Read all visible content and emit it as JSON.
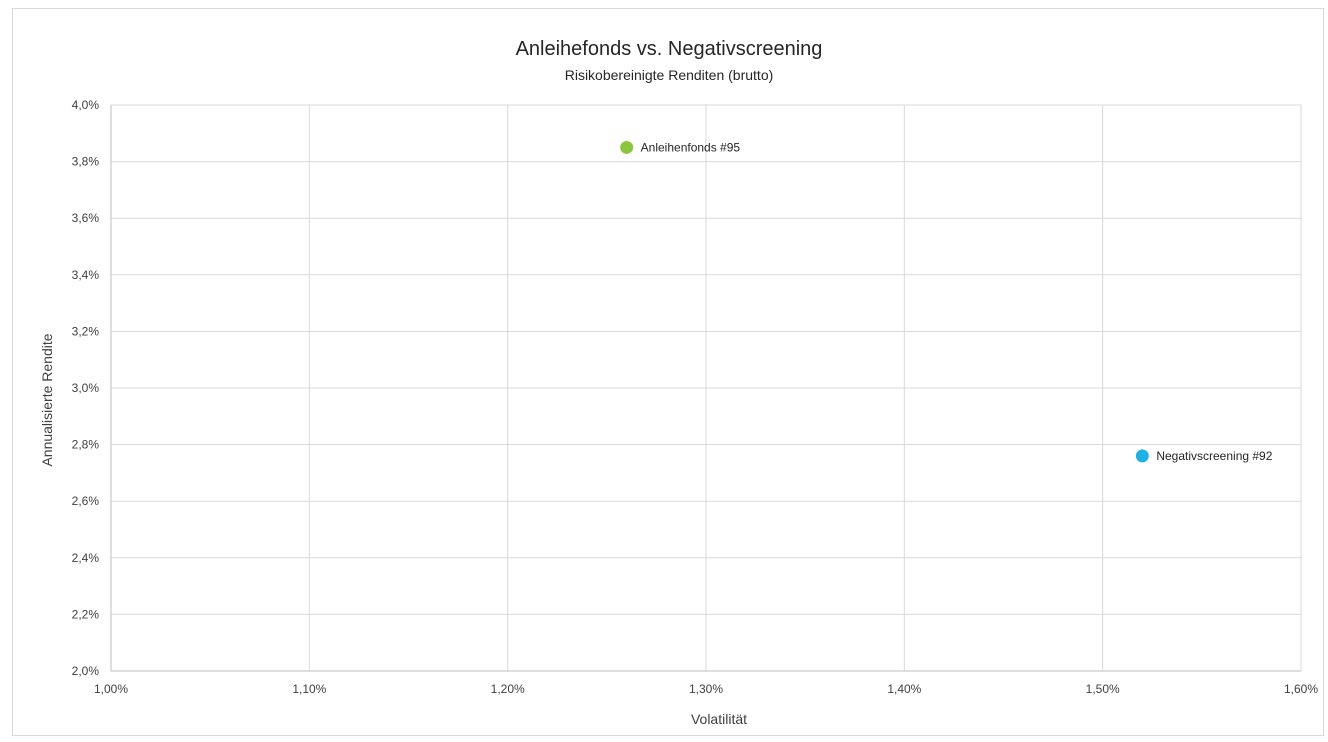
{
  "chart_data": {
    "type": "scatter",
    "title": "Anleihefonds vs. Negativscreening",
    "subtitle": "Risikobereinigte Renditen (brutto)",
    "xlabel": "Volatilität",
    "ylabel": "Annualisierte Rendite",
    "xlim": [
      1.0,
      1.6
    ],
    "ylim": [
      2.0,
      4.0
    ],
    "x_ticks": [
      {
        "value": 1.0,
        "label": "1,00%"
      },
      {
        "value": 1.1,
        "label": "1,10%"
      },
      {
        "value": 1.2,
        "label": "1,20%"
      },
      {
        "value": 1.3,
        "label": "1,30%"
      },
      {
        "value": 1.4,
        "label": "1,40%"
      },
      {
        "value": 1.5,
        "label": "1,50%"
      },
      {
        "value": 1.6,
        "label": "1,60%"
      }
    ],
    "y_ticks": [
      {
        "value": 2.0,
        "label": "2,0%"
      },
      {
        "value": 2.2,
        "label": "2,2%"
      },
      {
        "value": 2.4,
        "label": "2,4%"
      },
      {
        "value": 2.6,
        "label": "2,6%"
      },
      {
        "value": 2.8,
        "label": "2,8%"
      },
      {
        "value": 3.0,
        "label": "3,0%"
      },
      {
        "value": 3.2,
        "label": "3,2%"
      },
      {
        "value": 3.4,
        "label": "3,4%"
      },
      {
        "value": 3.6,
        "label": "3,6%"
      },
      {
        "value": 3.8,
        "label": "3,8%"
      },
      {
        "value": 4.0,
        "label": "4,0%"
      }
    ],
    "grid": true,
    "legend": "none",
    "points": [
      {
        "label": "Anleihenfonds #95",
        "x": 1.26,
        "y": 3.85,
        "color": "#8cc63f"
      },
      {
        "label": "Negativscreening #92",
        "x": 1.52,
        "y": 2.76,
        "color": "#1fb1e6"
      }
    ]
  }
}
